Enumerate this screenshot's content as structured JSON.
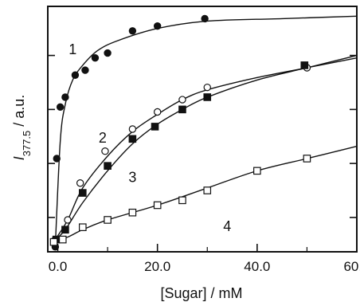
{
  "chart_data": {
    "type": "scatter",
    "title": "",
    "xlabel": "[Sugar] / mM",
    "ylabel": {
      "main": "I",
      "subscript": "377.5",
      "suffix": " / a.u."
    },
    "xlim": [
      -2,
      60
    ],
    "ylim": [
      0,
      1
    ],
    "x_tick_labels": [
      "0.0",
      "20.0",
      "40.0",
      "60.0"
    ],
    "x_ticks": [
      0,
      20,
      40,
      60
    ],
    "minor_x_ticks": [
      10,
      30,
      50
    ],
    "y_ticks": [
      0.14,
      0.36,
      0.58,
      0.8
    ],
    "grid": false,
    "legend": "none",
    "series": [
      {
        "name": "1",
        "marker": "filled-circle",
        "color": "#111111",
        "points": [
          [
            -0.5,
            0.02
          ],
          [
            -0.2,
            0.38
          ],
          [
            0.5,
            0.59
          ],
          [
            1.5,
            0.63
          ],
          [
            3.5,
            0.72
          ],
          [
            5.5,
            0.74
          ],
          [
            7.5,
            0.79
          ],
          [
            10.0,
            0.81
          ],
          [
            15.0,
            0.9
          ],
          [
            20.0,
            0.92
          ],
          [
            29.5,
            0.95
          ]
        ],
        "curve": [
          [
            -0.5,
            0.02
          ],
          [
            0.5,
            0.45
          ],
          [
            1.5,
            0.6
          ],
          [
            3.0,
            0.7
          ],
          [
            5.0,
            0.76
          ],
          [
            8.0,
            0.82
          ],
          [
            12.0,
            0.86
          ],
          [
            20.0,
            0.91
          ],
          [
            30.0,
            0.94
          ],
          [
            45.0,
            0.95
          ],
          [
            60.0,
            0.96
          ]
        ]
      },
      {
        "name": "2",
        "marker": "open-circle",
        "color": "#111111",
        "points": [
          [
            -0.5,
            0.05
          ],
          [
            2.0,
            0.13
          ],
          [
            4.5,
            0.28
          ],
          [
            9.5,
            0.41
          ],
          [
            15.0,
            0.5
          ],
          [
            20.0,
            0.57
          ],
          [
            25.0,
            0.62
          ],
          [
            30.0,
            0.67
          ],
          [
            50.0,
            0.75
          ]
        ],
        "curve": [
          [
            -0.5,
            0.05
          ],
          [
            2.0,
            0.13
          ],
          [
            5.0,
            0.26
          ],
          [
            10.0,
            0.39
          ],
          [
            15.0,
            0.49
          ],
          [
            20.0,
            0.56
          ],
          [
            25.0,
            0.62
          ],
          [
            30.0,
            0.66
          ],
          [
            40.0,
            0.71
          ],
          [
            50.0,
            0.75
          ],
          [
            60.0,
            0.79
          ]
        ]
      },
      {
        "name": "3",
        "marker": "filled-square",
        "color": "#111111",
        "points": [
          [
            -0.3,
            0.05
          ],
          [
            1.5,
            0.09
          ],
          [
            5.0,
            0.24
          ],
          [
            10.0,
            0.35
          ],
          [
            15.0,
            0.46
          ],
          [
            19.5,
            0.51
          ],
          [
            25.0,
            0.58
          ],
          [
            30.0,
            0.63
          ],
          [
            49.5,
            0.76
          ]
        ],
        "curve": [
          [
            -0.5,
            0.05
          ],
          [
            1.5,
            0.09
          ],
          [
            5.0,
            0.2
          ],
          [
            10.0,
            0.33
          ],
          [
            15.0,
            0.44
          ],
          [
            20.0,
            0.52
          ],
          [
            25.0,
            0.58
          ],
          [
            30.0,
            0.63
          ],
          [
            40.0,
            0.7
          ],
          [
            50.0,
            0.75
          ],
          [
            60.0,
            0.8
          ]
        ]
      },
      {
        "name": "4",
        "marker": "open-square",
        "color": "#111111",
        "points": [
          [
            -0.8,
            0.04
          ],
          [
            1.0,
            0.05
          ],
          [
            5.0,
            0.1
          ],
          [
            10.0,
            0.13
          ],
          [
            15.0,
            0.16
          ],
          [
            20.0,
            0.19
          ],
          [
            25.0,
            0.21
          ],
          [
            30.0,
            0.25
          ],
          [
            40.0,
            0.33
          ],
          [
            50.0,
            0.38
          ]
        ],
        "curve": [
          [
            -0.8,
            0.04
          ],
          [
            2.0,
            0.06
          ],
          [
            5.0,
            0.09
          ],
          [
            10.0,
            0.13
          ],
          [
            20.0,
            0.19
          ],
          [
            30.0,
            0.26
          ],
          [
            40.0,
            0.33
          ],
          [
            50.0,
            0.38
          ],
          [
            60.0,
            0.43
          ]
        ]
      }
    ],
    "series_labels": [
      {
        "text": "1",
        "x": 3.0,
        "y": 0.82
      },
      {
        "text": "2",
        "x": 9.0,
        "y": 0.46
      },
      {
        "text": "3",
        "x": 15.0,
        "y": 0.3
      },
      {
        "text": "4",
        "x": 34.0,
        "y": 0.1
      }
    ]
  }
}
